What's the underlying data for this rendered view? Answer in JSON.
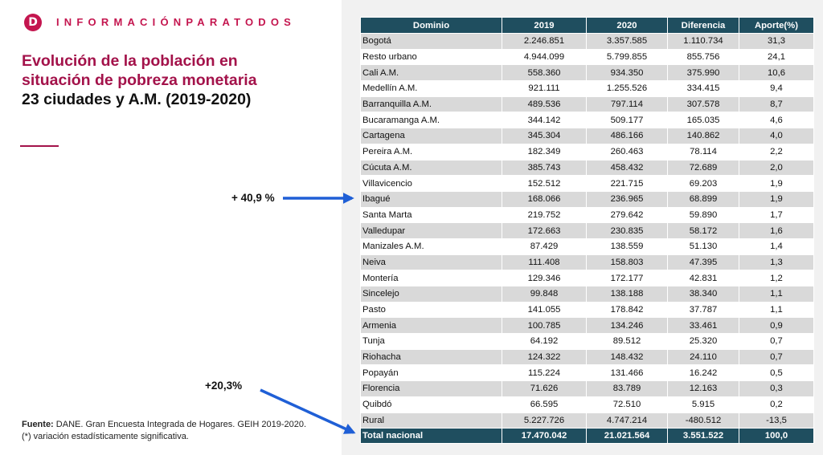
{
  "brand": {
    "logo_letter": "D",
    "name": "INFORMACIÓNPARATODOS",
    "accent_color": "#c4164f"
  },
  "title": {
    "line1": "Evolución de la población en",
    "line2": "situación de pobreza monetaria",
    "line3": "23 ciudades y A.M. (2019-2020)"
  },
  "callouts": {
    "first": "+ 40,9 %",
    "second": "+20,3%",
    "arrow_color": "#1f5fd6"
  },
  "footer": {
    "source_label": "Fuente:",
    "source_text": " DANE. Gran Encuesta Integrada de Hogares. GEIH 2019-2020.",
    "note": "(*) variación estadísticamente significativa."
  },
  "table": {
    "header_color": "#1f4e5f",
    "headers": [
      "Dominio",
      "2019",
      "2020",
      "Diferencia",
      "Aporte(%)"
    ],
    "rows": [
      [
        "Bogotá",
        "2.246.851",
        "3.357.585",
        "1.110.734",
        "31,3"
      ],
      [
        "Resto urbano",
        "4.944.099",
        "5.799.855",
        "855.756",
        "24,1"
      ],
      [
        "Cali A.M.",
        "558.360",
        "934.350",
        "375.990",
        "10,6"
      ],
      [
        "Medellín A.M.",
        "921.111",
        "1.255.526",
        "334.415",
        "9,4"
      ],
      [
        "Barranquilla A.M.",
        "489.536",
        "797.114",
        "307.578",
        "8,7"
      ],
      [
        "Bucaramanga A.M.",
        "344.142",
        "509.177",
        "165.035",
        "4,6"
      ],
      [
        "Cartagena",
        "345.304",
        "486.166",
        "140.862",
        "4,0"
      ],
      [
        "Pereira A.M.",
        "182.349",
        "260.463",
        "78.114",
        "2,2"
      ],
      [
        "Cúcuta A.M.",
        "385.743",
        "458.432",
        "72.689",
        "2,0"
      ],
      [
        "Villavicencio",
        "152.512",
        "221.715",
        "69.203",
        "1,9"
      ],
      [
        "Ibagué",
        "168.066",
        "236.965",
        "68.899",
        "1,9"
      ],
      [
        "Santa Marta",
        "219.752",
        "279.642",
        "59.890",
        "1,7"
      ],
      [
        "Valledupar",
        "172.663",
        "230.835",
        "58.172",
        "1,6"
      ],
      [
        "Manizales A.M.",
        "87.429",
        "138.559",
        "51.130",
        "1,4"
      ],
      [
        "Neiva",
        "111.408",
        "158.803",
        "47.395",
        "1,3"
      ],
      [
        "Montería",
        "129.346",
        "172.177",
        "42.831",
        "1,2"
      ],
      [
        "Sincelejo",
        "99.848",
        "138.188",
        "38.340",
        "1,1"
      ],
      [
        "Pasto",
        "141.055",
        "178.842",
        "37.787",
        "1,1"
      ],
      [
        "Armenia",
        "100.785",
        "134.246",
        "33.461",
        "0,9"
      ],
      [
        "Tunja",
        "64.192",
        "89.512",
        "25.320",
        "0,7"
      ],
      [
        "Riohacha",
        "124.322",
        "148.432",
        "24.110",
        "0,7"
      ],
      [
        "Popayán",
        "115.224",
        "131.466",
        "16.242",
        "0,5"
      ],
      [
        "Florencia",
        "71.626",
        "83.789",
        "12.163",
        "0,3"
      ],
      [
        "Quibdó",
        "66.595",
        "72.510",
        "5.915",
        "0,2"
      ],
      [
        "Rural",
        "5.227.726",
        "4.747.214",
        "-480.512",
        "-13,5"
      ]
    ],
    "total": [
      "Total nacional",
      "17.470.042",
      "21.021.564",
      "3.551.522",
      "100,0"
    ]
  }
}
